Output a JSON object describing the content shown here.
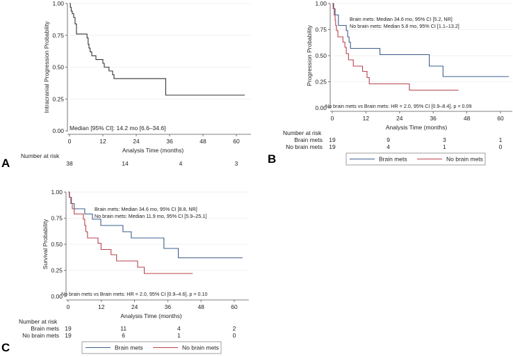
{
  "colors": {
    "single": "#333333",
    "brain_mets": "#3a5f8c",
    "no_brain_mets": "#b8434d"
  },
  "chart_data": [
    {
      "panel": "A",
      "type": "line",
      "step": true,
      "ylabel": "Intracranial Progression Probability",
      "xlabel": "Analysis Time (months)",
      "xlim": [
        0,
        65
      ],
      "ylim": [
        0,
        1
      ],
      "xticks": [
        0,
        12,
        24,
        36,
        48,
        60
      ],
      "yticks": [
        "0.00",
        "0.25",
        "0.50",
        "0.75",
        "1.00"
      ],
      "grid": true,
      "annotations": [
        "Median [95% CI]: 14.2 mo [6.6–34.6]"
      ],
      "series": [
        {
          "name": "",
          "color_key": "single",
          "end": 63,
          "steps": [
            [
              0,
              1.0
            ],
            [
              0.3,
              0.97
            ],
            [
              0.6,
              0.94
            ],
            [
              1.0,
              0.92
            ],
            [
              1.5,
              0.89
            ],
            [
              2.0,
              0.84
            ],
            [
              2.5,
              0.76
            ],
            [
              6.3,
              0.73
            ],
            [
              6.7,
              0.68
            ],
            [
              7.0,
              0.65
            ],
            [
              7.4,
              0.62
            ],
            [
              8.0,
              0.59
            ],
            [
              9.5,
              0.56
            ],
            [
              12.0,
              0.53
            ],
            [
              12.5,
              0.5
            ],
            [
              14.2,
              0.47
            ],
            [
              15.5,
              0.44
            ],
            [
              16.0,
              0.41
            ],
            [
              34.6,
              0.28
            ]
          ]
        }
      ],
      "risk_table": {
        "title": "Number at risk",
        "times": [
          0,
          20,
          40,
          60
        ],
        "rows": [
          {
            "label": "",
            "values": [
              "38",
              "14",
              "4",
              "3"
            ]
          }
        ]
      },
      "legend": null
    },
    {
      "panel": "B",
      "type": "line",
      "step": true,
      "ylabel": "Progression Probability",
      "xlabel": "Analysis Time (months)",
      "xlim": [
        0,
        64
      ],
      "ylim": [
        0,
        1
      ],
      "xticks": [
        0,
        12,
        24,
        36,
        48,
        60
      ],
      "yticks": [
        "0.00",
        "0.25",
        "0.50",
        "0.75",
        "1.00"
      ],
      "grid": true,
      "annotations": [
        "Brain mets: Median 34.6 mo, 95% CI [5.2, NR]",
        "No brain mets: Median 5.8 mo, 95% CI [1.1–13.2]",
        "No brain mets vs Brain mets: HR = 2.0, 95% CI [0.9–8.4], p = 0.09"
      ],
      "series": [
        {
          "name": "Brain mets",
          "color_key": "brain_mets",
          "end": 63,
          "steps": [
            [
              0,
              1.0
            ],
            [
              0.5,
              0.95
            ],
            [
              1.0,
              0.89
            ],
            [
              2.2,
              0.79
            ],
            [
              5.0,
              0.74
            ],
            [
              5.5,
              0.68
            ],
            [
              6.0,
              0.63
            ],
            [
              6.5,
              0.57
            ],
            [
              17.0,
              0.51
            ],
            [
              34.6,
              0.4
            ],
            [
              39.5,
              0.3
            ]
          ]
        },
        {
          "name": "No brain mets",
          "color_key": "no_brain_mets",
          "end": 45,
          "steps": [
            [
              0,
              1.0
            ],
            [
              0.3,
              0.95
            ],
            [
              0.7,
              0.89
            ],
            [
              1.0,
              0.84
            ],
            [
              1.2,
              0.79
            ],
            [
              1.5,
              0.74
            ],
            [
              2.0,
              0.68
            ],
            [
              3.8,
              0.63
            ],
            [
              4.5,
              0.58
            ],
            [
              5.0,
              0.52
            ],
            [
              5.8,
              0.46
            ],
            [
              7.5,
              0.4
            ],
            [
              10.8,
              0.35
            ],
            [
              12.4,
              0.29
            ],
            [
              13.2,
              0.23
            ],
            [
              27.5,
              0.17
            ]
          ]
        }
      ],
      "risk_table": {
        "title": "Number at risk",
        "times": [
          0,
          20,
          40,
          60
        ],
        "rows": [
          {
            "label": "Brain mets",
            "values": [
              "19",
              "9",
              "3",
              "1"
            ]
          },
          {
            "label": "No brain mets",
            "values": [
              "19",
              "4",
              "1",
              "0"
            ]
          }
        ]
      },
      "legend": [
        "Brain mets",
        "No brain mets"
      ]
    },
    {
      "panel": "C",
      "type": "line",
      "step": true,
      "ylabel": "Survival Probability",
      "xlabel": "Analysis Time (months)",
      "xlim": [
        0,
        65
      ],
      "ylim": [
        0,
        1
      ],
      "xticks": [
        0,
        12,
        24,
        36,
        48,
        60
      ],
      "yticks": [
        "0.00",
        "0.25",
        "0.50",
        "0.75",
        "1.00"
      ],
      "grid": true,
      "annotations": [
        "Brain mets: Median 34.6 mo, 95% CI [8.8, NR]",
        "No brain mets: Median 11.9 mo, 95% CI [5.9–25.1]",
        "No brain mets vs Brain mets: HR = 2.0, 95% CI [0.9–4.6], p = 0.10"
      ],
      "series": [
        {
          "name": "Brain mets",
          "color_key": "brain_mets",
          "end": 63,
          "steps": [
            [
              0,
              1.0
            ],
            [
              0.5,
              0.95
            ],
            [
              1.0,
              0.89
            ],
            [
              2.2,
              0.84
            ],
            [
              6.0,
              0.79
            ],
            [
              8.8,
              0.74
            ],
            [
              11.8,
              0.68
            ],
            [
              19.8,
              0.62
            ],
            [
              22.8,
              0.56
            ],
            [
              34.6,
              0.46
            ],
            [
              39.8,
              0.37
            ]
          ]
        },
        {
          "name": "No brain mets",
          "color_key": "no_brain_mets",
          "end": 45,
          "steps": [
            [
              0,
              1.0
            ],
            [
              0.4,
              0.95
            ],
            [
              1.2,
              0.89
            ],
            [
              1.5,
              0.84
            ],
            [
              2.2,
              0.79
            ],
            [
              5.5,
              0.74
            ],
            [
              6.0,
              0.68
            ],
            [
              6.4,
              0.62
            ],
            [
              7.0,
              0.56
            ],
            [
              10.8,
              0.51
            ],
            [
              11.9,
              0.45
            ],
            [
              15.5,
              0.4
            ],
            [
              17.5,
              0.34
            ],
            [
              25.1,
              0.28
            ],
            [
              27.5,
              0.22
            ]
          ]
        }
      ],
      "risk_table": {
        "title": "Number at risk",
        "times": [
          0,
          20,
          40,
          60
        ],
        "rows": [
          {
            "label": "Brain mets",
            "values": [
              "19",
              "11",
              "4",
              "2"
            ]
          },
          {
            "label": "No brain mets",
            "values": [
              "19",
              "6",
              "1",
              "0"
            ]
          }
        ]
      },
      "legend": [
        "Brain mets",
        "No brain mets"
      ]
    }
  ]
}
